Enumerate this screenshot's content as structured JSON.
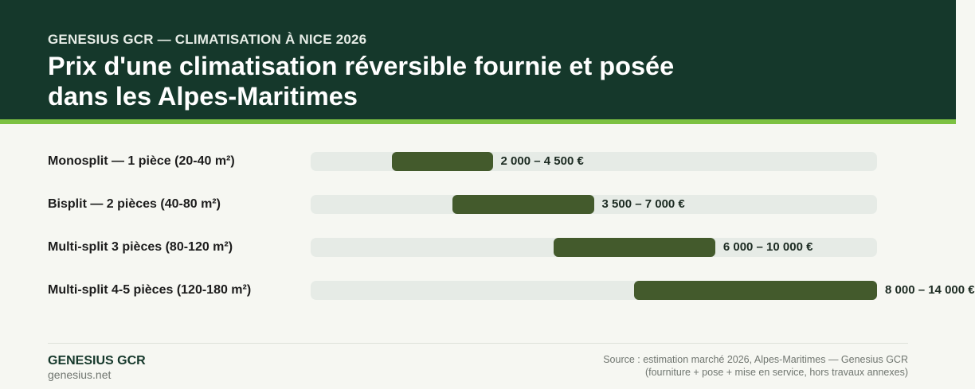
{
  "header": {
    "eyebrow": "GENESIUS GCR — CLIMATISATION À NICE 2026",
    "title_lines": [
      "Prix d'une climatisation réversible fournie et posée",
      "dans les Alpes-Maritimes"
    ]
  },
  "colors": {
    "header_bg": "#15382b",
    "accent": "#7cc142",
    "range_bar": "#435a2c",
    "track": "#e6ebe6",
    "page_bg": "#f6f7f2"
  },
  "chart_data": {
    "type": "bar",
    "subtype": "floating-range",
    "unit": "€",
    "xlim": [
      0,
      14000
    ],
    "grid": false,
    "legend": "none",
    "categories": [
      "Monosplit — 1 pièce (20-40 m²)",
      "Bisplit — 2 pièces (40-80 m²)",
      "Multi-split 3 pièces (80-120 m²)",
      "Multi-split 4-5 pièces (120-180 m²)"
    ],
    "ranges": [
      [
        2000,
        4500
      ],
      [
        3500,
        7000
      ],
      [
        6000,
        10000
      ],
      [
        8000,
        14000
      ]
    ],
    "labels": [
      "2 000 – 4 500 €",
      "3 500 – 7 000 €",
      "6 000 – 10 000 €",
      "8 000 – 14 000 €"
    ]
  },
  "footer": {
    "brand": "GENESIUS GCR",
    "site": "genesius.net",
    "source_lines": [
      "Source : estimation marché 2026, Alpes-Maritimes — Genesius GCR",
      "(fourniture + pose + mise en service, hors travaux annexes)"
    ]
  }
}
